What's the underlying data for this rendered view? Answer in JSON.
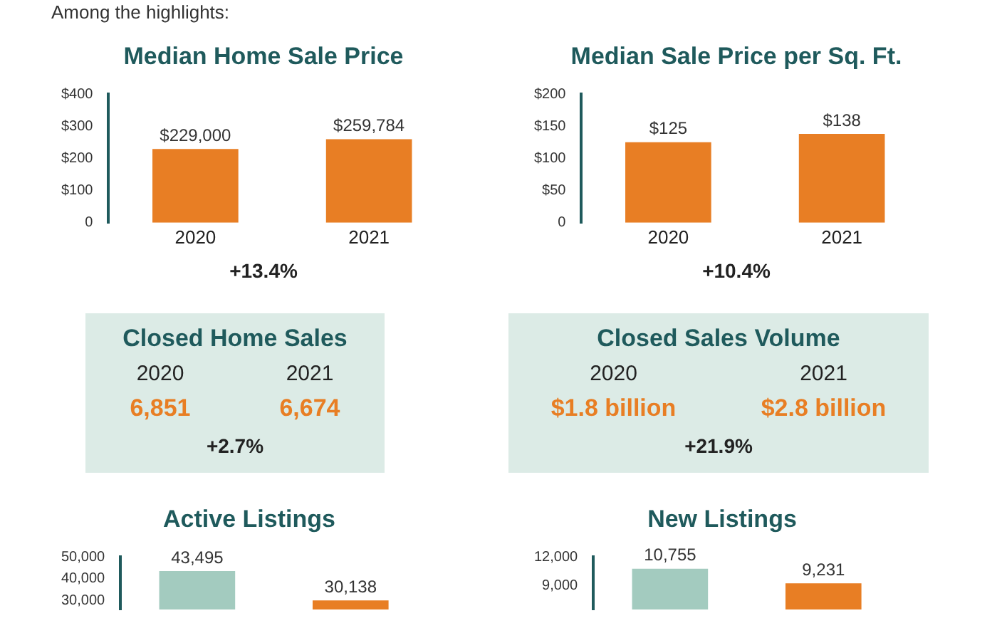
{
  "chart_data": [
    {
      "type": "bar",
      "subtitle": "Among the highlights:",
      "title": "Median Home Sale Price",
      "categories": [
        "2020",
        "2021"
      ],
      "values": [
        229,
        259.784
      ],
      "colors": [
        "#e87e24",
        "#e87e24"
      ],
      "ylim": [
        0,
        400
      ],
      "yticks": [
        0,
        {
          "value": 100,
          "label": "$100"
        },
        {
          "value": 200,
          "label": "$200"
        },
        {
          "value": 300,
          "label": "$300"
        },
        {
          "value": 400,
          "label": "$400"
        }
      ],
      "grid": false,
      "annotations": [
        {
          "text": "$229,000",
          "x": "2020",
          "y": 229
        },
        {
          "text": "$259,784",
          "x": "2021",
          "y": 259.784
        },
        "+13.4%"
      ]
    },
    {
      "type": "bar",
      "title": "Median Sale Price per Sq. Ft.",
      "categories": [
        "2020",
        "2021"
      ],
      "values": [
        125,
        138
      ],
      "value_labels": [
        "$125",
        "$138"
      ],
      "colors": [
        "#e87e24",
        "#e87e24"
      ],
      "ylim": [
        0,
        200
      ],
      "yticks": [
        0,
        {
          "value": 50,
          "label": "$50"
        },
        {
          "value": 100,
          "label": "$100"
        },
        {
          "value": 150,
          "label": "$150"
        },
        {
          "value": 200,
          "label": "$200"
        }
      ],
      "grid": false,
      "annotations": [
        "+10.4%"
      ]
    },
    {
      "type": "other",
      "title": "Closed Home Sales",
      "categories": [
        "2020",
        "2021"
      ],
      "annotations": [
        "6,851",
        "6,674",
        "+2.7%"
      ]
    },
    {
      "type": "other",
      "title": "Closed Sales Volume",
      "categories": [
        "2020",
        "2021"
      ],
      "annotations": [
        "$1.8 billion",
        "$2.8 billion",
        "+21.9%"
      ]
    },
    {
      "type": "bar",
      "title": "Active Listings",
      "categories": [
        null,
        null
      ],
      "values": [
        43495,
        30138
      ],
      "value_labels": [
        "43,495",
        "30,138"
      ],
      "colors": [
        "#a3cbbf",
        "#e87e24"
      ],
      "ylim": [
        26000,
        50000
      ],
      "yticks": [
        {
          "value": 30000,
          "label": "30,000"
        },
        {
          "value": 40000,
          "label": "40,000"
        },
        {
          "value": 50000,
          "label": "50,000"
        }
      ],
      "grid": false,
      "tick_labels": "y"
    },
    {
      "type": "bar",
      "title": "New Listings",
      "categories": [
        null,
        null
      ],
      "values": [
        10755,
        9231
      ],
      "value_labels": [
        "10,755",
        "9,231"
      ],
      "colors": [
        "#a3cbbf",
        "#e87e24"
      ],
      "ylim": [
        6500,
        12000
      ],
      "yticks": [
        {
          "value": 9000,
          "label": "9,000"
        },
        {
          "value": 12000,
          "label": "12,000"
        }
      ],
      "grid": false,
      "tick_labels": "y"
    }
  ]
}
